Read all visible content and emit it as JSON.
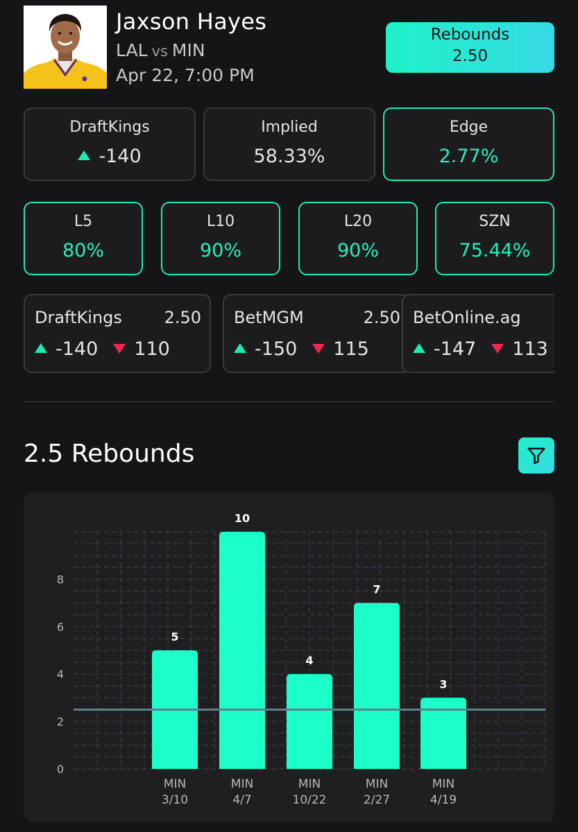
{
  "header": {
    "player_name": "Jaxson Hayes",
    "team": "LAL",
    "vs": "vs",
    "opponent": "MIN",
    "game_time": "Apr 22, 7:00 PM",
    "prop": {
      "market": "Rebounds",
      "line": "2.50"
    }
  },
  "summary_cards": [
    {
      "title": "DraftKings",
      "value": "-140",
      "arrow": "up"
    },
    {
      "title": "Implied",
      "value": "58.33%"
    },
    {
      "title": "Edge",
      "value": "2.77%"
    }
  ],
  "hit_rates": [
    {
      "title": "L5",
      "value": "80%"
    },
    {
      "title": "L10",
      "value": "90%"
    },
    {
      "title": "L20",
      "value": "90%"
    },
    {
      "title": "SZN",
      "value": "75.44%"
    }
  ],
  "sportsbooks": [
    {
      "name": "DraftKings",
      "line": "2.50",
      "over": "-140",
      "under": "110"
    },
    {
      "name": "BetMGM",
      "line": "2.50",
      "over": "-150",
      "under": "115"
    },
    {
      "name": "BetOnline.ag",
      "line": "",
      "over": "-147",
      "under": "113"
    }
  ],
  "section": {
    "title": "2.5 Rebounds"
  },
  "colors": {
    "accent": "#20f0c0",
    "accent_gradient_end": "#36d9e4",
    "negative": "#f2264f",
    "card_border": "#3a3a3f",
    "background": "#151517"
  },
  "icons": {
    "filter": "filter-funnel-icon",
    "up": "triangle-up-icon",
    "down": "triangle-down-icon"
  },
  "chart_data": {
    "type": "bar",
    "categories": [
      "MIN 3/10",
      "MIN 4/7",
      "MIN 10/22",
      "MIN 2/27",
      "MIN 4/19"
    ],
    "category_lines": [
      [
        "MIN",
        "3/10"
      ],
      [
        "MIN",
        "4/7"
      ],
      [
        "MIN",
        "10/22"
      ],
      [
        "MIN",
        "2/27"
      ],
      [
        "MIN",
        "4/19"
      ]
    ],
    "values": [
      5,
      10,
      4,
      7,
      3
    ],
    "data_labels": [
      "5",
      "10",
      "4",
      "7",
      "3"
    ],
    "threshold": 2.5,
    "ylim": [
      0,
      10
    ],
    "yticks": [
      0,
      2,
      4,
      6,
      8
    ],
    "grid": true,
    "bar_color": "#1cffc8",
    "threshold_color": "#5f7f8c"
  }
}
